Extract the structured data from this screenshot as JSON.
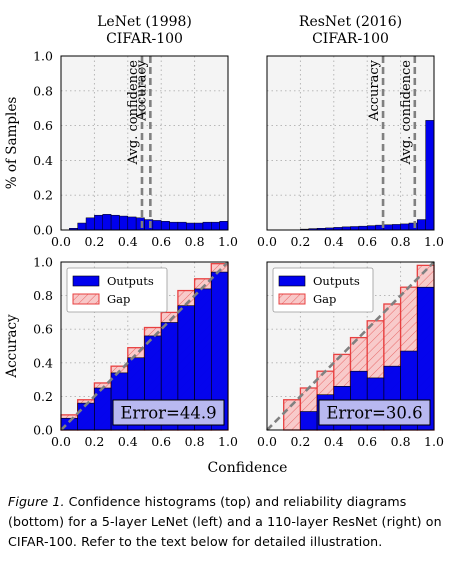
{
  "chart_data": [
    {
      "type": "bar",
      "panel": "top-left",
      "title_lines": [
        "LeNet (1998)",
        "CIFAR-100"
      ],
      "ylabel": "% of Samples",
      "xlabel": "",
      "xlim": [
        0.0,
        1.0
      ],
      "ylim": [
        0.0,
        1.0
      ],
      "xticks": [
        "0.0",
        "0.2",
        "0.4",
        "0.6",
        "0.8",
        "1.0"
      ],
      "yticks": [
        "0.0",
        "0.2",
        "0.4",
        "0.6",
        "0.8",
        "1.0"
      ],
      "bin_width": 0.05,
      "bin_starts": [
        0.05,
        0.1,
        0.15,
        0.2,
        0.25,
        0.3,
        0.35,
        0.4,
        0.45,
        0.5,
        0.55,
        0.6,
        0.65,
        0.7,
        0.75,
        0.8,
        0.85,
        0.9,
        0.95
      ],
      "values": [
        0.01,
        0.04,
        0.07,
        0.085,
        0.09,
        0.085,
        0.08,
        0.075,
        0.07,
        0.06,
        0.055,
        0.05,
        0.045,
        0.045,
        0.04,
        0.04,
        0.045,
        0.045,
        0.05
      ],
      "vlines": [
        {
          "label": "Avg. confidence",
          "x": 0.485
        },
        {
          "label": "Accuracy",
          "x": 0.535
        }
      ],
      "grid": true
    },
    {
      "type": "bar",
      "panel": "top-right",
      "title_lines": [
        "ResNet (2016)",
        "CIFAR-100"
      ],
      "xlim": [
        0.0,
        1.0
      ],
      "ylim": [
        0.0,
        1.0
      ],
      "xticks": [
        "0.0",
        "0.2",
        "0.4",
        "0.6",
        "0.8",
        "1.0"
      ],
      "bin_width": 0.05,
      "bin_starts": [
        0.2,
        0.25,
        0.3,
        0.35,
        0.4,
        0.45,
        0.5,
        0.55,
        0.6,
        0.65,
        0.7,
        0.75,
        0.8,
        0.85,
        0.9,
        0.95
      ],
      "values": [
        0.005,
        0.008,
        0.01,
        0.012,
        0.015,
        0.018,
        0.02,
        0.022,
        0.025,
        0.028,
        0.03,
        0.032,
        0.035,
        0.04,
        0.06,
        0.63
      ],
      "vlines": [
        {
          "label": "Accuracy",
          "x": 0.695
        },
        {
          "label": "Avg. confidence",
          "x": 0.885
        }
      ],
      "grid": true
    },
    {
      "type": "bar",
      "panel": "bottom-left",
      "ylabel": "Accuracy",
      "xlim": [
        0.0,
        1.0
      ],
      "ylim": [
        0.0,
        1.0
      ],
      "xticks": [
        "0.0",
        "0.2",
        "0.4",
        "0.6",
        "0.8",
        "1.0"
      ],
      "yticks": [
        "0.0",
        "0.2",
        "0.4",
        "0.6",
        "0.8",
        "1.0"
      ],
      "bin_width": 0.1,
      "bin_starts": [
        0.0,
        0.1,
        0.2,
        0.3,
        0.4,
        0.5,
        0.6,
        0.7,
        0.8,
        0.9
      ],
      "series": [
        {
          "name": "Outputs",
          "values": [
            0.07,
            0.16,
            0.25,
            0.34,
            0.43,
            0.56,
            0.64,
            0.74,
            0.84,
            0.94
          ],
          "color": "#0000ee"
        },
        {
          "name": "Gap",
          "values": [
            0.09,
            0.18,
            0.28,
            0.38,
            0.49,
            0.61,
            0.7,
            0.83,
            0.9,
            0.99
          ],
          "color": "#f8b8b8"
        }
      ],
      "legend": "top-left",
      "annotation": "Error=44.9",
      "grid": true
    },
    {
      "type": "bar",
      "panel": "bottom-right",
      "xlim": [
        0.0,
        1.0
      ],
      "ylim": [
        0.0,
        1.0
      ],
      "xticks": [
        "0.0",
        "0.2",
        "0.4",
        "0.6",
        "0.8",
        "1.0"
      ],
      "bin_width": 0.1,
      "bin_starts": [
        0.1,
        0.2,
        0.3,
        0.4,
        0.5,
        0.6,
        0.7,
        0.8,
        0.9
      ],
      "series": [
        {
          "name": "Outputs",
          "values": [
            0.0,
            0.11,
            0.21,
            0.26,
            0.35,
            0.31,
            0.38,
            0.47,
            0.85
          ],
          "color": "#0000ee"
        },
        {
          "name": "Gap",
          "values": [
            0.18,
            0.25,
            0.35,
            0.45,
            0.55,
            0.65,
            0.75,
            0.85,
            0.98
          ],
          "color": "#f8b8b8"
        }
      ],
      "legend": "top-left",
      "annotation": "Error=30.6",
      "grid": true
    }
  ],
  "shared_xlabel": "Confidence",
  "legend_labels": {
    "outputs": "Outputs",
    "gap": "Gap"
  },
  "caption": {
    "lead": "Figure 1.",
    "text": " Confidence histograms (top) and reliability diagrams (bottom) for a 5-layer LeNet (left) and a 110-layer ResNet (right) on CIFAR-100. Refer to the text below for detailed illustration."
  },
  "colors": {
    "blue": "#0000ee",
    "gap_fill": "#f8b8b8",
    "gap_edge": "#e84040",
    "diag": "#808080",
    "panel_bg": "#f4f4f4",
    "error_box": "#b8b8f0"
  }
}
